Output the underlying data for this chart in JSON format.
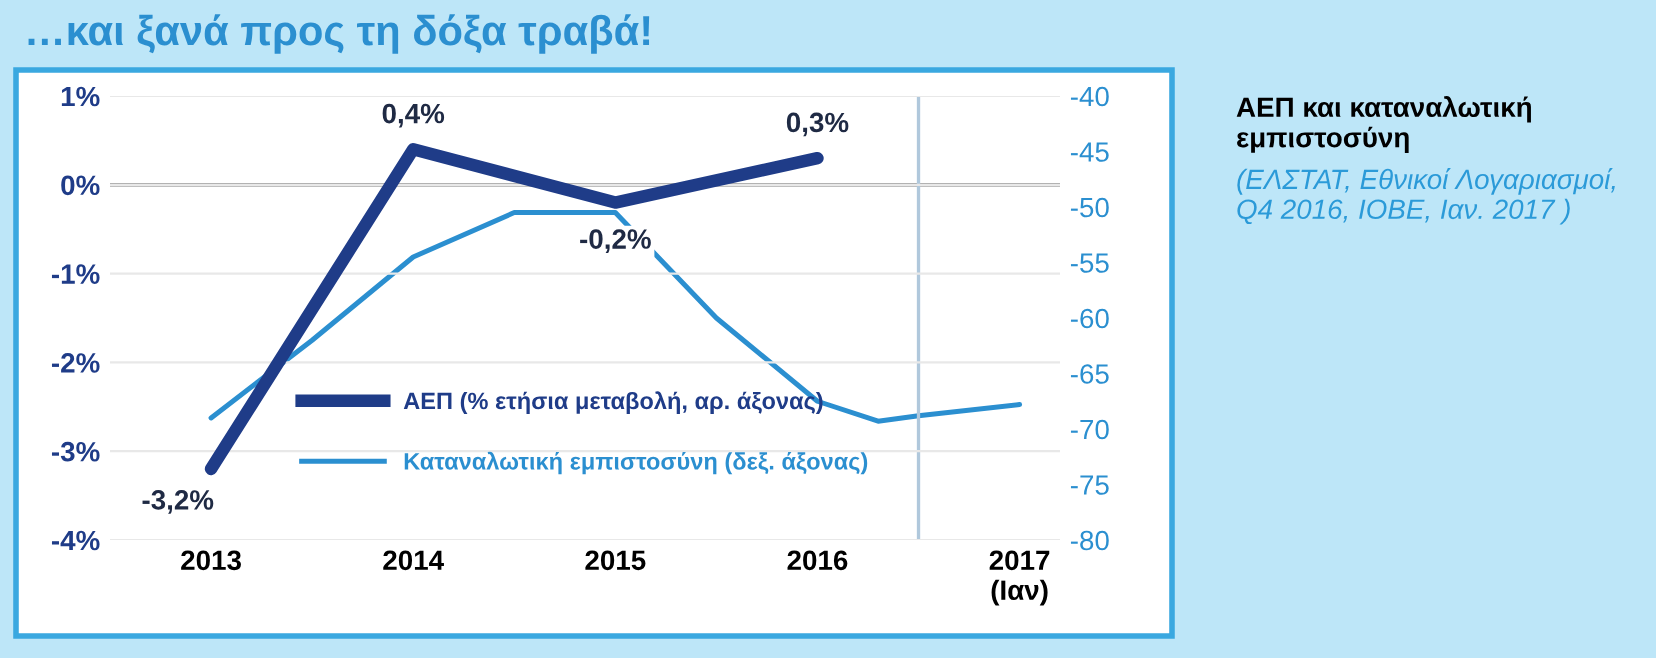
{
  "chart_data": {
    "type": "line",
    "title": "…και ξανά προς τη δόξα τραβά!",
    "annotations": [
      "ΑΕΠ και καταναλωτική εμπιστοσύνη",
      "(ΕΛΣΤΑΤ, Εθνικοί Λογαριασμοί, Q4 2016, ΙΟΒΕ, Ιαν. 2017 )"
    ],
    "xlim": [
      2012.5,
      2017.2
    ],
    "xticks": [
      2013,
      2014,
      2015,
      2016,
      {
        "value": 2017,
        "label": "2017\n(Ιαν)"
      }
    ],
    "ylim": [
      -4,
      1
    ],
    "yticks": [
      {
        "value": 1,
        "label": "1%"
      },
      {
        "value": 0,
        "label": "0%"
      },
      {
        "value": -1,
        "label": "-1%"
      },
      {
        "value": -2,
        "label": "-2%"
      },
      {
        "value": -3,
        "label": "-3%"
      },
      {
        "value": -4,
        "label": "-4%"
      }
    ],
    "y2lim": [
      -80,
      -40
    ],
    "y2ticks": [
      -40,
      -45,
      -50,
      -55,
      -60,
      -65,
      -70,
      -75,
      -80
    ],
    "grid": "y",
    "legend": "bottom",
    "series": [
      {
        "name": "ΑΕΠ (% ετήσια μεταβολή, αρ. άξονας)",
        "color": "#1f3c88",
        "x": [
          2013,
          2014,
          2015,
          2016
        ],
        "values": [
          -3.2,
          0.4,
          -0.2,
          0.3
        ],
        "value_labels": [
          "-3,2%",
          "0,4%",
          "-0,2%",
          "0,3%"
        ]
      },
      {
        "name": "Καταναλωτική εμπιστοσύνη (δεξ. άξονας)",
        "color": "#2b8fd0",
        "axis": "y2",
        "x": [
          2013,
          2013.5,
          2014,
          2014.5,
          2015,
          2015.5,
          2016,
          2016.3,
          2016.5,
          2017
        ],
        "values": [
          -69,
          -62,
          -54.5,
          -50.5,
          -50.5,
          -60,
          -67.5,
          -69.3,
          -68.8,
          -67.8
        ]
      }
    ],
    "ref_lines": [
      {
        "axis": "y",
        "value": 0,
        "color": "#808080"
      },
      {
        "axis": "x",
        "value": 2016.5,
        "color": "#b0c8dc"
      }
    ]
  }
}
